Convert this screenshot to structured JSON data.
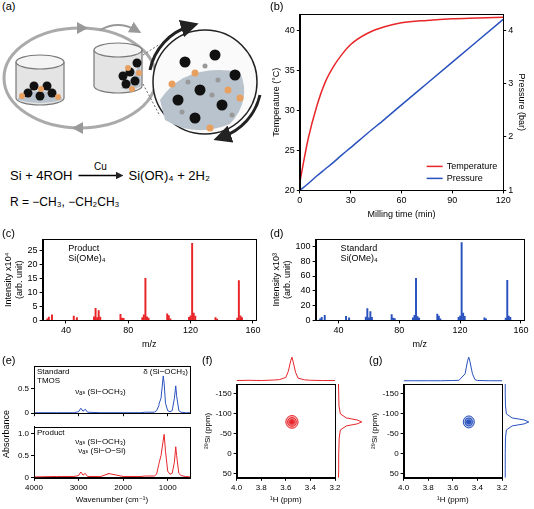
{
  "diagram": {
    "panel": "(a)",
    "equation": {
      "reactants": "Si + 4ROH",
      "catalyst": "Cu",
      "products": "Si(OR)₄ + 2H₂"
    },
    "substituent": "R = −CH₃, −CH₂CH₃"
  },
  "chart_data": [
    {
      "panel": "(b)",
      "type": "line",
      "xlabel": "Milling time (min)",
      "xlim": [
        0,
        120
      ],
      "xticks": [
        0,
        30,
        60,
        90,
        120
      ],
      "ylabel": "Temperature (°C)",
      "ylim": [
        20,
        42
      ],
      "yticks": [
        20,
        25,
        30,
        35,
        40
      ],
      "y2label": "Pressure (bar)",
      "y2lim": [
        1,
        4.3
      ],
      "y2ticks": [
        1,
        2,
        3,
        4
      ],
      "grid": false,
      "legend": "lower right",
      "x": [
        0,
        5,
        10,
        15,
        20,
        25,
        30,
        40,
        50,
        60,
        75,
        90,
        105,
        120
      ],
      "series": [
        {
          "name": "Temperature",
          "color": "#e8262a",
          "values": [
            21,
            26.5,
            30.5,
            33.5,
            35.5,
            37,
            38.2,
            39.6,
            40.4,
            40.9,
            41.2,
            41.4,
            41.5,
            41.6
          ]
        },
        {
          "name": "Pressure",
          "color": "#2a52be",
          "axis": "y2",
          "values": [
            1,
            1.13,
            1.27,
            1.4,
            1.53,
            1.67,
            1.8,
            2.07,
            2.33,
            2.6,
            3.0,
            3.4,
            3.8,
            4.2
          ]
        }
      ]
    },
    {
      "panel": "(c)",
      "type": "bar",
      "annotation": "Product\nSi(OMe)₄",
      "xlabel": "m/z",
      "xlim": [
        25,
        162
      ],
      "xticks": [
        40,
        80,
        120,
        160
      ],
      "ylabel": "Intensity x10⁴ (arb. unit)",
      "ylim": [
        0,
        29
      ],
      "yticks": [
        0,
        5,
        10,
        15,
        20,
        25
      ],
      "grid": false,
      "color": "#e8262a",
      "x": [
        28,
        29,
        31,
        45,
        47,
        58,
        59,
        60,
        61,
        62,
        75,
        76,
        77,
        89,
        90,
        91,
        92,
        93,
        105,
        106,
        107,
        119,
        120,
        121,
        122,
        123,
        136,
        137,
        150,
        151,
        152,
        153
      ],
      "values": [
        0.6,
        1.2,
        2.0,
        1.5,
        1.0,
        1.3,
        4.3,
        1.0,
        3.5,
        1.2,
        2.2,
        0.8,
        0.7,
        1.0,
        2.0,
        15.0,
        1.3,
        0.8,
        2.3,
        1.7,
        0.6,
        1.1,
        1.6,
        27.5,
        2.6,
        1.5,
        1.0,
        0.5,
        0.8,
        14.2,
        1.6,
        1.0
      ]
    },
    {
      "panel": "(d)",
      "type": "bar",
      "annotation": "Standard\nSi(OMe)₄",
      "xlabel": "m/z",
      "xlim": [
        25,
        162
      ],
      "xticks": [
        40,
        80,
        120,
        160
      ],
      "ylabel": "Intensity x10³ (arb. unit)",
      "ylim": [
        0,
        110
      ],
      "yticks": [
        0,
        20,
        40,
        60,
        80,
        100
      ],
      "grid": false,
      "color": "#2a52be",
      "x": [
        28,
        29,
        31,
        45,
        47,
        58,
        59,
        60,
        61,
        62,
        75,
        76,
        77,
        89,
        90,
        91,
        92,
        93,
        105,
        106,
        107,
        119,
        120,
        121,
        122,
        123,
        136,
        137,
        150,
        151,
        152,
        153
      ],
      "values": [
        2,
        4,
        7,
        5.5,
        3.5,
        4.5,
        16,
        3.5,
        12,
        4,
        8,
        3,
        2.5,
        3.5,
        7,
        57,
        5,
        3,
        8.5,
        6,
        2,
        4,
        6,
        105,
        10,
        5.5,
        3.5,
        2,
        3,
        54,
        6,
        4
      ]
    },
    {
      "panel": "(e)",
      "type": "line",
      "xlabel": "Wavenumber (cm⁻¹)",
      "ylabel": "Absorbance",
      "xlim": [
        4000,
        500
      ],
      "xticks": [
        4000,
        3000,
        2000,
        1000
      ],
      "grid": false,
      "legend": "upper left",
      "x": [
        4000,
        3500,
        3100,
        3000,
        2950,
        2900,
        2850,
        2800,
        2500,
        2360,
        2340,
        2000,
        1600,
        1500,
        1300,
        1250,
        1200,
        1190,
        1150,
        1100,
        1080,
        1050,
        1000,
        950,
        900,
        850,
        820,
        800,
        750,
        700,
        600,
        500
      ],
      "subplots": [
        {
          "name": "Standard\nTMOS",
          "color": "#2a52be",
          "ylim": [
            0,
            0.95
          ],
          "yticks": [
            0,
            0.5
          ],
          "tick_labels": "y",
          "annotations": [
            "δ (Si−OCH₃)",
            "νₐₛ (Si−OCH₃)"
          ],
          "values": [
            0.01,
            0.01,
            0.01,
            0.03,
            0.1,
            0.04,
            0.08,
            0.02,
            0.01,
            0.01,
            0.01,
            0.01,
            0.01,
            0.02,
            0.02,
            0.05,
            0.15,
            0.2,
            0.3,
            0.75,
            0.6,
            0.2,
            0.05,
            0.03,
            0.05,
            0.3,
            0.55,
            0.35,
            0.05,
            0.02,
            0.01,
            0.01
          ]
        },
        {
          "name": "Product",
          "color": "#e8262a",
          "ylim": [
            0,
            1.15
          ],
          "yticks": [
            0,
            0.5,
            {
              "value": 1,
              "label": "1.0"
            }
          ],
          "annotations": [
            "νₐₛ (Si−OCH₃)",
            "νₐₛ (Si−O−Si)"
          ],
          "values": [
            0.02,
            0.03,
            0.03,
            0.05,
            0.13,
            0.06,
            0.1,
            0.03,
            0.03,
            0.08,
            0.1,
            0.03,
            0.03,
            0.04,
            0.04,
            0.08,
            0.3,
            0.35,
            0.5,
            0.85,
            0.98,
            0.6,
            0.15,
            0.08,
            0.1,
            0.35,
            0.7,
            0.5,
            0.1,
            0.05,
            0.03,
            0.02
          ]
        }
      ]
    },
    {
      "panel": "(f)",
      "type": "contour",
      "color": "#e8262a",
      "xlabel": "¹H (ppm)",
      "ylabel": "²⁹Si (ppm)",
      "xlim": [
        4.0,
        3.2
      ],
      "xticks": [
        {
          "value": 4,
          "label": "4.0"
        },
        3.8,
        3.6,
        3.4,
        3.2
      ],
      "ylim": [
        60,
        -175
      ],
      "yticks": [
        -150,
        -100,
        -50,
        0,
        50
      ],
      "grid": false,
      "contours": {
        "x": 3.55,
        "y": -80,
        "levels": [
          {
            "dx": 0.05,
            "dy": 16
          },
          {
            "dx": 0.035,
            "dy": 11
          },
          {
            "dx": 0.02,
            "dy": 6
          }
        ]
      },
      "projection_x": {
        "x": [
          4.0,
          3.9,
          3.8,
          3.7,
          3.65,
          3.6,
          3.58,
          3.56,
          3.55,
          3.54,
          3.52,
          3.5,
          3.45,
          3.4,
          3.3,
          3.2
        ],
        "values": [
          0.02,
          0.03,
          0.02,
          0.04,
          0.06,
          0.15,
          0.4,
          0.85,
          1.0,
          0.8,
          0.35,
          0.12,
          0.05,
          0.03,
          0.02,
          0.02
        ],
        "ylim": [
          0,
          1.05
        ]
      },
      "projection_y": {
        "y": [
          60,
          40,
          0,
          -40,
          -60,
          -70,
          -75,
          -80,
          -85,
          -90,
          -100,
          -120,
          -150,
          -175
        ],
        "values": [
          0.02,
          0.03,
          0.03,
          0.05,
          0.1,
          0.35,
          0.8,
          1.0,
          0.8,
          0.35,
          0.1,
          0.04,
          0.03,
          0.02
        ],
        "xlim": [
          0,
          1.05
        ]
      }
    },
    {
      "panel": "(g)",
      "type": "contour",
      "color": "#2a52be",
      "xlabel": "¹H (ppm)",
      "ylabel": "²⁹Si (ppm)",
      "xlim": [
        4.0,
        3.2
      ],
      "xticks": [
        {
          "value": 4,
          "label": "4.0"
        },
        3.8,
        3.6,
        3.4,
        3.2
      ],
      "ylim": [
        60,
        -175
      ],
      "yticks": [
        -150,
        -100,
        -50,
        0,
        50
      ],
      "grid": false,
      "contours": {
        "x": 3.47,
        "y": -80,
        "levels": [
          {
            "dx": 0.045,
            "dy": 15
          },
          {
            "dx": 0.03,
            "dy": 10
          },
          {
            "dx": 0.018,
            "dy": 5
          }
        ]
      },
      "projection_x": {
        "x": [
          4.0,
          3.9,
          3.8,
          3.7,
          3.6,
          3.55,
          3.5,
          3.48,
          3.47,
          3.46,
          3.44,
          3.42,
          3.4,
          3.3,
          3.2
        ],
        "values": [
          0.01,
          0.01,
          0.01,
          0.01,
          0.02,
          0.03,
          0.3,
          0.85,
          1.0,
          0.8,
          0.3,
          0.06,
          0.02,
          0.01,
          0.01
        ],
        "ylim": [
          0,
          1.05
        ]
      },
      "projection_y": {
        "y": [
          60,
          40,
          0,
          -40,
          -60,
          -70,
          -75,
          -80,
          -85,
          -90,
          -100,
          -120,
          -150,
          -175
        ],
        "values": [
          0.01,
          0.01,
          0.01,
          0.02,
          0.06,
          0.3,
          0.8,
          1.0,
          0.8,
          0.3,
          0.06,
          0.02,
          0.01,
          0.01
        ],
        "xlim": [
          0,
          1.05
        ]
      }
    }
  ]
}
